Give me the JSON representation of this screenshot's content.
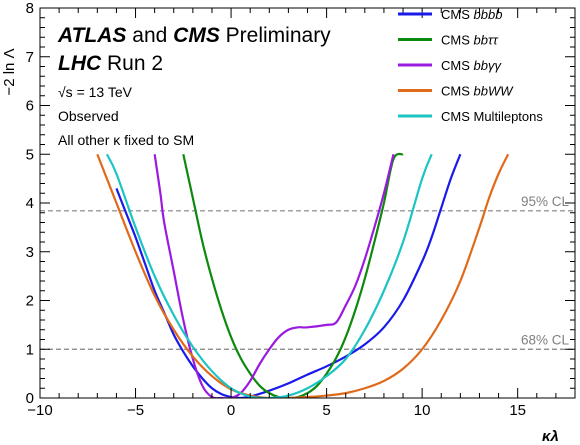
{
  "chart_data": {
    "type": "line",
    "xlabel": "κλ",
    "ylabel": "−2 ln Λ",
    "xlim": [
      -10,
      18
    ],
    "ylim": [
      0,
      8
    ],
    "x_ticks": [
      "−10",
      "−5",
      "0",
      "5",
      "10",
      "15"
    ],
    "x_tick_values": [
      -10,
      -5,
      0,
      5,
      10,
      15
    ],
    "y_ticks": [
      "0",
      "1",
      "2",
      "3",
      "4",
      "5",
      "6",
      "7",
      "8"
    ],
    "y_tick_values": [
      0,
      1,
      2,
      3,
      4,
      5,
      6,
      7,
      8
    ],
    "grid": false,
    "legend_position": "top-right",
    "annotations": {
      "line1_bold": "ATLAS",
      "line1_mid": " and ",
      "line1_bold2": "CMS",
      "line1_rest": " Preliminary",
      "line2_bold": "LHC",
      "line2_rest": " Run 2",
      "energy": "√s = 13 TeV",
      "observed": "Observed",
      "fixed": "All other κ fixed to SM"
    },
    "reference_lines": [
      {
        "label": "95% CL",
        "y": 3.84,
        "color": "#808080"
      },
      {
        "label": "68% CL",
        "y": 1.0,
        "color": "#808080"
      }
    ],
    "series": [
      {
        "name": "CMS bbbb",
        "name_prefix": "CMS ",
        "name_suffix": "bbbb",
        "color": "#1a1aeb",
        "x": [
          -6.0,
          -5.5,
          -5.0,
          -4.5,
          -4.0,
          -3.5,
          -3.0,
          -2.5,
          -2.0,
          -1.5,
          -1.0,
          -0.5,
          0.0,
          0.5,
          1.0,
          2.0,
          3.0,
          4.0,
          5.0,
          6.0,
          7.0,
          8.0,
          9.0,
          10.0,
          10.5,
          11.0,
          11.5,
          12.0
        ],
        "y": [
          4.3,
          3.8,
          3.3,
          2.75,
          2.2,
          1.75,
          1.3,
          0.95,
          0.65,
          0.4,
          0.2,
          0.08,
          0.02,
          0.0,
          0.03,
          0.15,
          0.3,
          0.48,
          0.65,
          0.85,
          1.1,
          1.45,
          2.0,
          2.8,
          3.3,
          3.9,
          4.5,
          5.0
        ]
      },
      {
        "name": "CMS bbττ",
        "name_prefix": "CMS ",
        "name_suffix": "bbττ",
        "color": "#0d8a0d",
        "x": [
          -2.5,
          -2.0,
          -1.5,
          -1.0,
          -0.5,
          0.0,
          0.5,
          1.0,
          1.5,
          2.0,
          2.5,
          3.0,
          3.5,
          4.0,
          4.5,
          5.0,
          5.5,
          6.0,
          6.5,
          7.0,
          7.5,
          8.0,
          8.5,
          9.0
        ],
        "y": [
          5.0,
          4.1,
          3.2,
          2.45,
          1.8,
          1.25,
          0.82,
          0.5,
          0.25,
          0.1,
          0.02,
          0.0,
          0.02,
          0.1,
          0.25,
          0.5,
          0.82,
          1.25,
          1.8,
          2.45,
          3.2,
          4.0,
          4.9,
          5.0
        ]
      },
      {
        "name": "CMS bbγγ",
        "name_prefix": "CMS ",
        "name_suffix": "bbγγ",
        "color": "#9a1ae0",
        "x": [
          -4.0,
          -3.7,
          -3.5,
          -3.0,
          -2.5,
          -2.0,
          -1.5,
          -1.0,
          -0.5,
          0.0,
          0.5,
          1.0,
          1.5,
          2.0,
          2.5,
          3.0,
          3.5,
          4.0,
          5.0,
          5.5,
          6.0,
          6.5,
          7.0,
          7.5,
          8.0,
          8.5
        ],
        "y": [
          5.0,
          4.2,
          3.6,
          2.6,
          1.6,
          0.8,
          0.25,
          0.02,
          0.0,
          0.0,
          0.1,
          0.35,
          0.7,
          1.0,
          1.25,
          1.4,
          1.45,
          1.45,
          1.5,
          1.55,
          1.9,
          2.3,
          2.85,
          3.5,
          4.2,
          5.0
        ]
      },
      {
        "name": "CMS bbWW",
        "name_prefix": "CMS ",
        "name_suffix": "bbWW",
        "color": "#e06a1a",
        "x": [
          -7.0,
          -6.0,
          -5.0,
          -4.0,
          -3.0,
          -2.0,
          -1.0,
          0.0,
          1.0,
          2.0,
          3.0,
          4.0,
          5.0,
          6.0,
          7.0,
          8.0,
          9.0,
          10.0,
          11.0,
          12.0,
          13.0,
          13.5,
          14.0,
          14.5
        ],
        "y": [
          5.0,
          4.0,
          3.0,
          2.1,
          1.4,
          0.85,
          0.45,
          0.18,
          0.05,
          0.0,
          0.0,
          0.02,
          0.05,
          0.1,
          0.2,
          0.35,
          0.6,
          1.0,
          1.6,
          2.4,
          3.5,
          4.1,
          4.6,
          5.0
        ]
      },
      {
        "name": "CMS Multileptons",
        "name_prefix": "CMS Multileptons",
        "name_suffix": "",
        "color": "#1cc4c4",
        "x": [
          -6.5,
          -6.0,
          -5.0,
          -4.0,
          -3.0,
          -2.0,
          -1.0,
          0.0,
          1.0,
          2.0,
          3.0,
          4.0,
          5.0,
          6.0,
          7.0,
          8.0,
          9.0,
          10.0,
          10.5
        ],
        "y": [
          5.0,
          4.6,
          3.5,
          2.5,
          1.7,
          1.05,
          0.55,
          0.2,
          0.03,
          0.0,
          0.05,
          0.2,
          0.45,
          0.8,
          1.4,
          2.2,
          3.2,
          4.5,
          5.0
        ]
      }
    ]
  }
}
